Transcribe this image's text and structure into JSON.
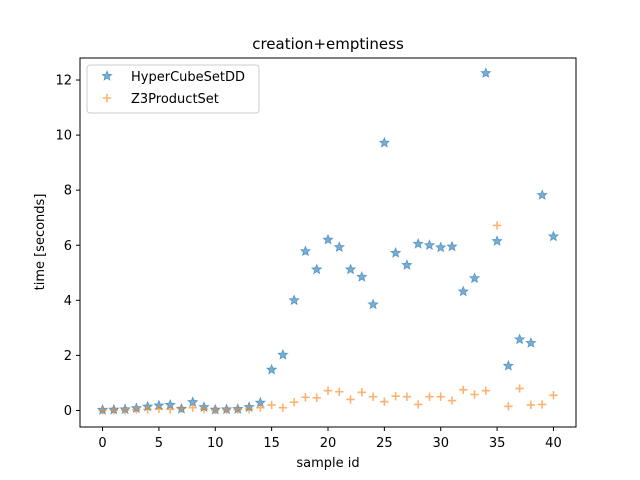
{
  "chart_data": {
    "type": "scatter",
    "title": "creation+emptiness",
    "xlabel": "sample id",
    "ylabel": "time [seconds]",
    "xlim": [
      -2,
      42
    ],
    "ylim": [
      -0.6,
      12.8
    ],
    "xticks": [
      0,
      5,
      10,
      15,
      20,
      25,
      30,
      35,
      40
    ],
    "yticks": [
      0,
      2,
      4,
      6,
      8,
      10,
      12
    ],
    "grid": false,
    "legend_position": "top-left",
    "series": [
      {
        "name": "HyperCubeSetDD",
        "color": "#1f77b4",
        "marker": "star",
        "x": [
          0,
          1,
          2,
          3,
          4,
          5,
          6,
          7,
          8,
          9,
          10,
          11,
          12,
          13,
          14,
          15,
          16,
          17,
          18,
          19,
          20,
          21,
          22,
          23,
          24,
          25,
          26,
          27,
          28,
          29,
          30,
          31,
          32,
          33,
          34,
          35,
          36,
          37,
          38,
          39,
          40
        ],
        "y": [
          0.02,
          0.03,
          0.04,
          0.08,
          0.14,
          0.18,
          0.2,
          0.06,
          0.3,
          0.12,
          0.03,
          0.04,
          0.05,
          0.12,
          0.28,
          1.48,
          2.02,
          4.0,
          5.78,
          5.12,
          6.2,
          5.93,
          5.12,
          4.85,
          3.85,
          9.72,
          5.72,
          5.28,
          6.05,
          6.0,
          5.92,
          5.95,
          4.32,
          4.8,
          12.25,
          6.15,
          1.62,
          2.58,
          2.45,
          7.82,
          6.32
        ]
      },
      {
        "name": "Z3ProductSet",
        "color": "#ff7f0e",
        "marker": "plus",
        "x": [
          0,
          1,
          2,
          3,
          4,
          5,
          6,
          7,
          8,
          9,
          10,
          11,
          12,
          13,
          14,
          15,
          16,
          17,
          18,
          19,
          20,
          21,
          22,
          23,
          24,
          25,
          26,
          27,
          28,
          29,
          30,
          31,
          32,
          33,
          34,
          35,
          36,
          37,
          38,
          39,
          40
        ],
        "y": [
          0.0,
          0.01,
          0.01,
          0.03,
          0.04,
          0.06,
          0.04,
          0.08,
          0.1,
          0.05,
          0.02,
          0.02,
          0.03,
          0.05,
          0.1,
          0.2,
          0.1,
          0.3,
          0.48,
          0.46,
          0.72,
          0.68,
          0.4,
          0.66,
          0.5,
          0.32,
          0.52,
          0.5,
          0.22,
          0.5,
          0.5,
          0.36,
          0.75,
          0.58,
          0.72,
          6.72,
          0.15,
          0.8,
          0.2,
          0.22,
          0.55
        ]
      }
    ]
  }
}
